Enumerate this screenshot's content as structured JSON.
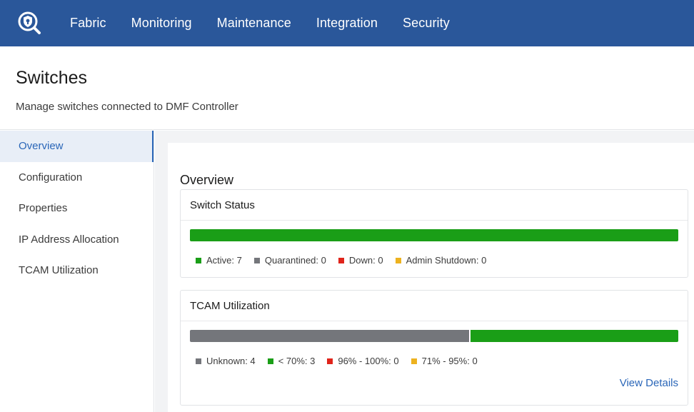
{
  "nav": {
    "logo_icon": "shield-search-logo",
    "items": [
      "Fabric",
      "Monitoring",
      "Maintenance",
      "Integration",
      "Security"
    ]
  },
  "header": {
    "title": "Switches",
    "subtitle": "Manage switches connected to DMF Controller"
  },
  "sidebar": {
    "items": [
      {
        "label": "Overview",
        "active": true
      },
      {
        "label": "Configuration",
        "active": false
      },
      {
        "label": "Properties",
        "active": false
      },
      {
        "label": "IP Address Allocation",
        "active": false
      },
      {
        "label": "TCAM Utilization",
        "active": false
      }
    ]
  },
  "main": {
    "title": "Overview",
    "switch_status": {
      "title": "Switch Status",
      "segments": [
        {
          "label": "Active: 7",
          "value": 7,
          "color": "#1a9e17"
        },
        {
          "label": "Quarantined: 0",
          "value": 0,
          "color": "#74767b"
        },
        {
          "label": "Down: 0",
          "value": 0,
          "color": "#e0241b"
        },
        {
          "label": "Admin Shutdown: 0",
          "value": 0,
          "color": "#edb21f"
        }
      ]
    },
    "tcam": {
      "title": "TCAM Utilization",
      "segments": [
        {
          "label": "Unknown: 4",
          "value": 4,
          "color": "#74767b"
        },
        {
          "label": "< 70%: 3",
          "value": 3,
          "color": "#1a9e17"
        },
        {
          "label": "96% - 100%: 0",
          "value": 0,
          "color": "#e0241b"
        },
        {
          "label": "71% - 95%: 0",
          "value": 0,
          "color": "#edb21f"
        }
      ],
      "link": "View Details"
    }
  }
}
